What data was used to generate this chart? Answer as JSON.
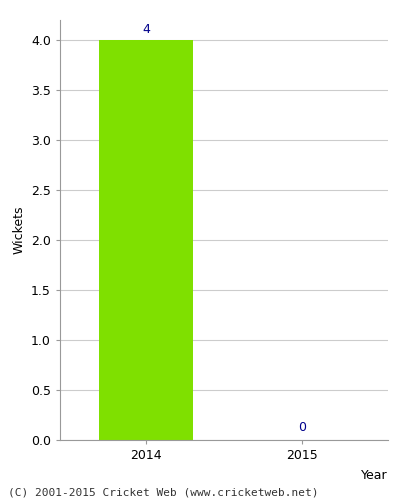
{
  "categories": [
    "2014",
    "2015"
  ],
  "values": [
    4,
    0
  ],
  "bar_color": "#7FE000",
  "bar_width": 0.6,
  "xlabel": "Year",
  "ylabel": "Wickets",
  "ylim": [
    0,
    4.2
  ],
  "yticks": [
    0.0,
    0.5,
    1.0,
    1.5,
    2.0,
    2.5,
    3.0,
    3.5,
    4.0
  ],
  "value_label_color": "#00008B",
  "value_label_fontsize": 9,
  "axis_label_fontsize": 9,
  "tick_fontsize": 9,
  "footer_text": "(C) 2001-2015 Cricket Web (www.cricketweb.net)",
  "footer_fontsize": 8,
  "background_color": "#ffffff",
  "grid_color": "#cccccc",
  "zero_label_color": "#00008B",
  "spine_color": "#999999"
}
